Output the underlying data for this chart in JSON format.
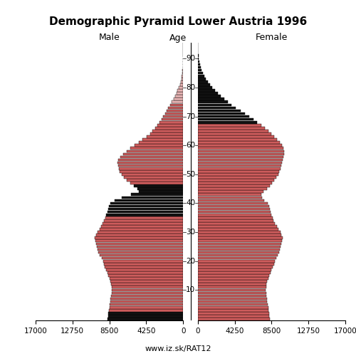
{
  "title": "Demographic Pyramid Lower Austria 1996",
  "label_male": "Male",
  "label_female": "Female",
  "label_age": "Age",
  "footer": "www.iz.sk/RAT12",
  "xlim": 17000,
  "xticks_left": [
    17000,
    12750,
    8500,
    4250,
    0
  ],
  "xticks_right": [
    0,
    4250,
    8500,
    12750,
    17000
  ],
  "xticklabels_left": [
    "17000",
    "12750",
    "8500",
    "4250",
    "0"
  ],
  "xticklabels_right": [
    "0",
    "4250",
    "8500",
    "12750",
    "17000"
  ],
  "age_ticks": [
    10,
    20,
    30,
    40,
    50,
    60,
    70,
    80,
    90
  ],
  "bar_height": 0.9,
  "color_red": "#cd5c5c",
  "color_pink": "#e8b4b4",
  "color_black": "#111111",
  "edgecolor": "#000000",
  "linewidth": 0.3,
  "male_values": [
    8700,
    8650,
    8600,
    8550,
    8500,
    8450,
    8400,
    8350,
    8300,
    8250,
    8200,
    8250,
    8300,
    8400,
    8500,
    8600,
    8700,
    8850,
    9000,
    9100,
    9200,
    9400,
    9600,
    9750,
    9850,
    9950,
    10050,
    10100,
    10150,
    10050,
    9850,
    9650,
    9450,
    9250,
    9100,
    8950,
    8850,
    8750,
    8650,
    8550,
    8400,
    7900,
    7100,
    6000,
    5100,
    5300,
    5700,
    6100,
    6500,
    6800,
    7100,
    7300,
    7400,
    7500,
    7550,
    7450,
    7200,
    6900,
    6500,
    6100,
    5600,
    5100,
    4650,
    4200,
    3800,
    3500,
    3200,
    2950,
    2700,
    2500,
    2300,
    2100,
    1900,
    1700,
    1500,
    1300,
    1100,
    940,
    780,
    630,
    500,
    380,
    285,
    205,
    145,
    100,
    68,
    45,
    29,
    18,
    11,
    7,
    4,
    2,
    1,
    1
  ],
  "female_values": [
    8300,
    8250,
    8200,
    8150,
    8100,
    8050,
    8000,
    7950,
    7900,
    7850,
    7800,
    7850,
    7900,
    8000,
    8100,
    8200,
    8350,
    8500,
    8650,
    8800,
    8900,
    9050,
    9200,
    9350,
    9450,
    9550,
    9650,
    9700,
    9750,
    9650,
    9500,
    9300,
    9100,
    8900,
    8750,
    8600,
    8500,
    8400,
    8300,
    8200,
    8050,
    7650,
    7400,
    7300,
    7600,
    8000,
    8300,
    8550,
    8800,
    9050,
    9250,
    9400,
    9500,
    9600,
    9700,
    9800,
    9900,
    9950,
    9950,
    9900,
    9700,
    9450,
    9150,
    8800,
    8450,
    8100,
    7700,
    7300,
    6850,
    6400,
    5900,
    5400,
    4900,
    4400,
    3900,
    3450,
    3050,
    2650,
    2300,
    1980,
    1680,
    1400,
    1150,
    930,
    740,
    575,
    440,
    330,
    240,
    170,
    118,
    80,
    52,
    33,
    20,
    11
  ],
  "male_black_ages": [
    0,
    1,
    2,
    36,
    37,
    38,
    39,
    40,
    41,
    42,
    43,
    44,
    45,
    46
  ],
  "male_pink_ages": [
    75,
    76,
    77,
    78,
    79,
    80,
    81,
    82,
    83,
    84,
    85,
    86,
    87,
    88,
    89,
    90,
    91,
    92,
    93,
    94,
    95
  ],
  "female_black_ages": [
    68,
    69,
    70,
    71,
    72,
    73,
    74,
    75,
    76,
    77,
    78,
    79,
    80,
    81,
    82,
    83,
    84,
    85,
    86,
    87,
    88,
    89,
    90,
    91,
    92,
    93,
    94,
    95
  ],
  "female_pink_ages": []
}
